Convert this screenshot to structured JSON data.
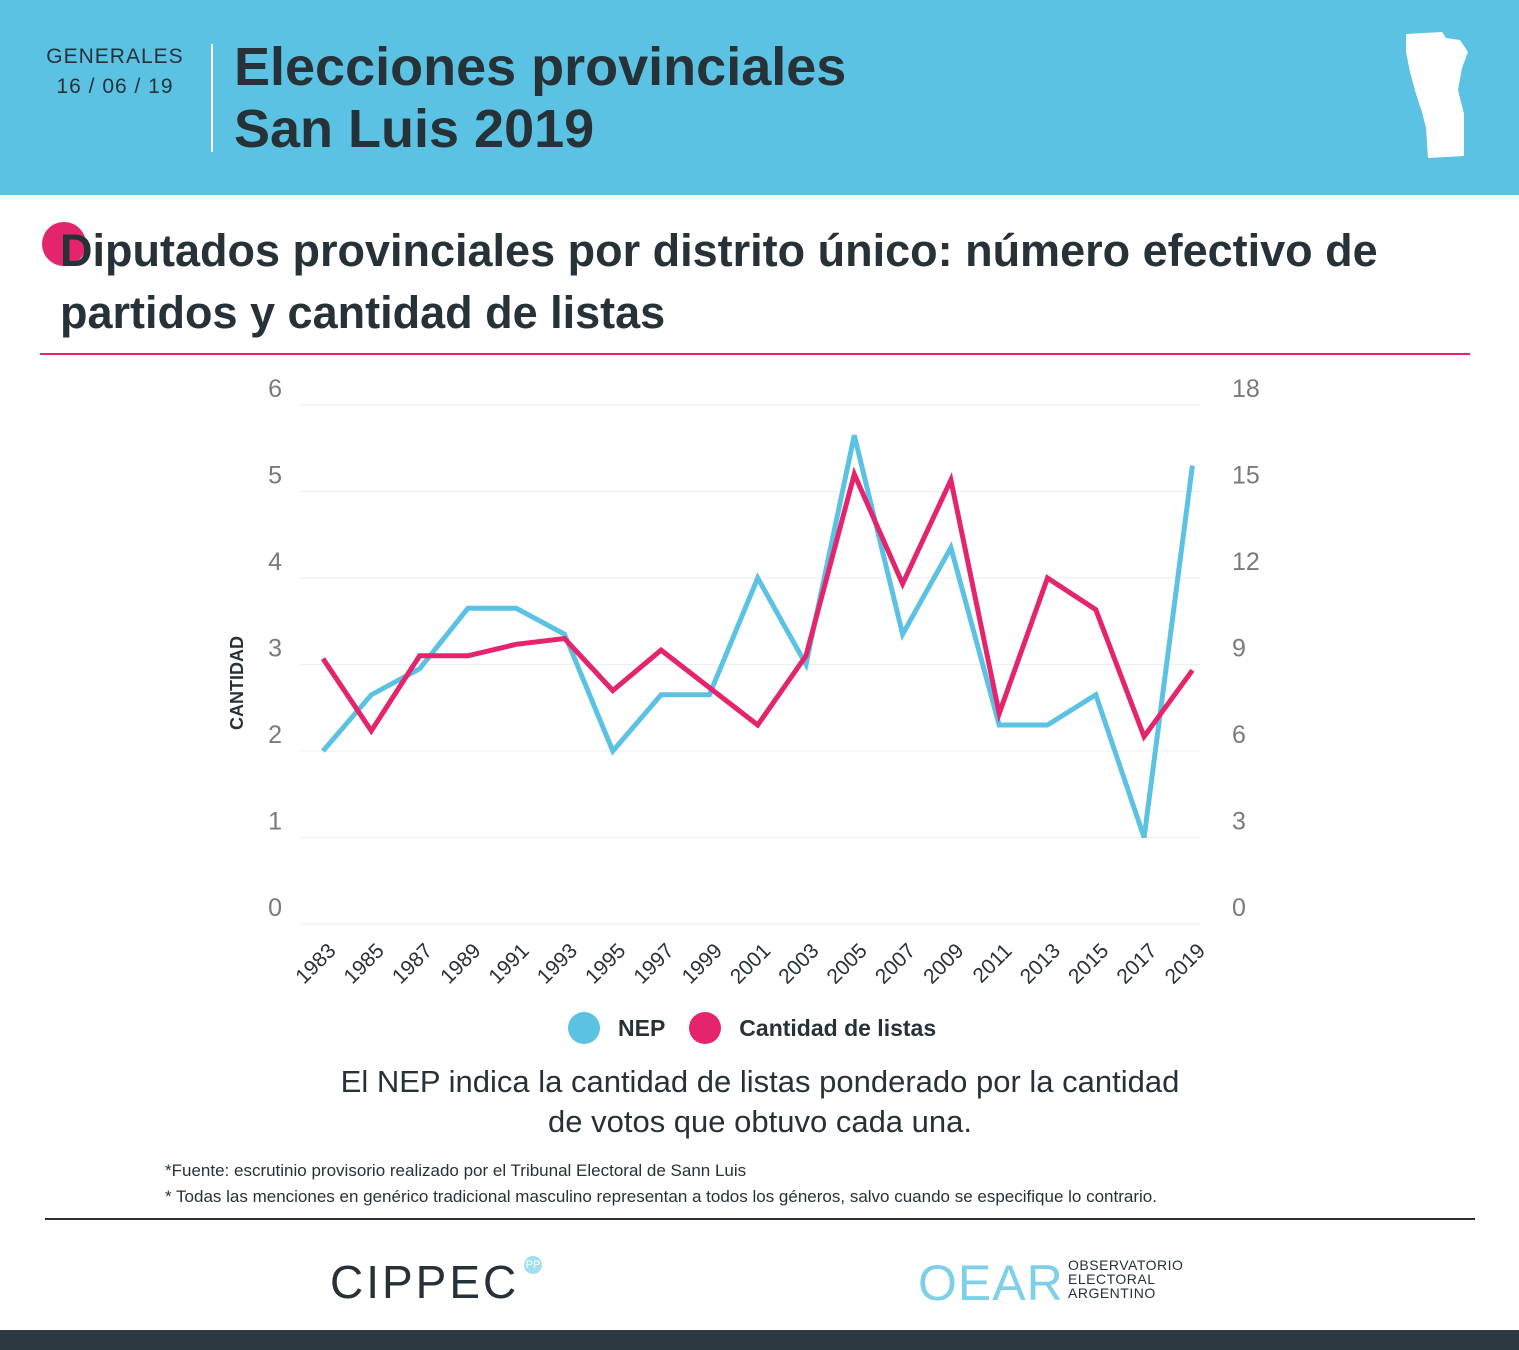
{
  "header": {
    "kicker_line1": "GENERALES",
    "kicker_line2": "16 / 06 / 19",
    "title_line1": "Elecciones provinciales",
    "title_line2": "San Luis 2019"
  },
  "main_title": "Diputados provinciales por distrito único: número efectivo de partidos y cantidad de listas",
  "chart_data": {
    "type": "line",
    "categories": [
      "1983",
      "1985",
      "1987",
      "1989",
      "1991",
      "1993",
      "1995",
      "1997",
      "1999",
      "2001",
      "2003",
      "2005",
      "2007",
      "2009",
      "2011",
      "2013",
      "2015",
      "2017",
      "2019"
    ],
    "ylabel": "CANTIDAD",
    "ylim_left": [
      0,
      6
    ],
    "yticks_left": [
      "0",
      "1",
      "2",
      "3",
      "4",
      "5",
      "6"
    ],
    "ylim_right": [
      0,
      18
    ],
    "yticks_right": [
      "0",
      "3",
      "6",
      "9",
      "12",
      "15",
      "18"
    ],
    "grid": true,
    "series": [
      {
        "name": "NEP",
        "axis": "left",
        "color": "#5bc2e4",
        "values": [
          2.0,
          2.65,
          2.95,
          3.65,
          3.65,
          3.35,
          2.0,
          2.65,
          2.65,
          4.0,
          3.0,
          5.65,
          3.35,
          4.35,
          2.3,
          2.3,
          2.65,
          1.0,
          5.3
        ]
      },
      {
        "name": "Cantidad de listas",
        "axis": "right",
        "color": "#e4256d",
        "values": [
          9.2,
          6.7,
          9.3,
          9.3,
          9.7,
          9.9,
          8.1,
          9.5,
          8.2,
          6.9,
          9.3,
          15.6,
          11.8,
          15.4,
          7.3,
          12.0,
          10.9,
          6.5,
          8.8
        ]
      }
    ]
  },
  "legend": {
    "nep_label": "NEP",
    "listas_label": "Cantidad de listas"
  },
  "note_line1": "El NEP indica la cantidad de listas ponderado por la cantidad",
  "note_line2": "de votos que obtuvo cada una.",
  "footnotes": {
    "source": "*Fuente: escrutinio provisorio realizado por el Tribunal Electoral de Sann Luis",
    "gender": "* Todas las menciones en genérico tradicional masculino representan a todos los géneros, salvo cuando se especifique lo contrario."
  },
  "logos": {
    "cippec": "CIPPEC",
    "cippec_mark": "PP",
    "oear": "OEAR",
    "oear_line1": "OBSERVATORIO",
    "oear_line2": "ELECTORAL",
    "oear_line3": "ARGENTINO"
  },
  "colors": {
    "header_bg": "#5bc2e4",
    "accent": "#e4256d",
    "text": "#263238"
  }
}
